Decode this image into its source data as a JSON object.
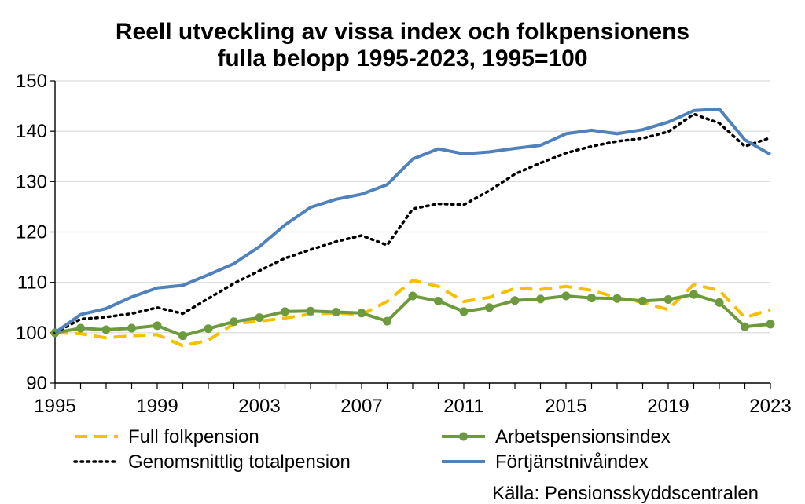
{
  "chart_data": {
    "type": "line",
    "title_line1": "Reell utveckling av vissa index och folkpensionens",
    "title_line2": "fulla belopp 1995-2023, 1995=100",
    "xlabel": "",
    "ylabel": "",
    "ylim": [
      90,
      150
    ],
    "yticks": [
      90,
      100,
      110,
      120,
      130,
      140,
      150
    ],
    "xlim": [
      1995,
      2023
    ],
    "xticks": [
      1995,
      1999,
      2003,
      2007,
      2011,
      2015,
      2019,
      2023
    ],
    "grid": "horizontal",
    "legend_position": "bottom",
    "x": [
      1995,
      1996,
      1997,
      1998,
      1999,
      2000,
      2001,
      2002,
      2003,
      2004,
      2005,
      2006,
      2007,
      2008,
      2009,
      2010,
      2011,
      2012,
      2013,
      2014,
      2015,
      2016,
      2017,
      2018,
      2019,
      2020,
      2021,
      2022,
      2023
    ],
    "series": [
      {
        "name": "Full folkpension",
        "color": "#F5C000",
        "style": "dashed",
        "values": [
          100,
          99.8,
          99.0,
          99.4,
          99.6,
          97.4,
          98.5,
          101.8,
          102.3,
          102.9,
          103.7,
          103.9,
          103.6,
          106.2,
          110.4,
          109.2,
          106.2,
          107.0,
          108.8,
          108.6,
          109.2,
          108.4,
          107.0,
          106.0,
          104.6,
          109.6,
          108.4,
          103.0,
          104.6
        ]
      },
      {
        "name": "Arbetspensionsindex",
        "color": "#6E9A3E",
        "style": "solid-markers",
        "values": [
          100,
          100.9,
          100.6,
          100.9,
          101.4,
          99.4,
          100.8,
          102.2,
          103.0,
          104.2,
          104.3,
          104.1,
          103.9,
          102.3,
          107.3,
          106.3,
          104.2,
          105.0,
          106.4,
          106.7,
          107.3,
          106.9,
          106.8,
          106.3,
          106.6,
          107.6,
          106.0,
          101.2,
          101.7
        ]
      },
      {
        "name": "Genomsnittlig totalpension",
        "color": "#000000",
        "style": "dotted",
        "values": [
          100,
          102.7,
          103.1,
          103.8,
          105.0,
          103.8,
          106.8,
          109.8,
          112.3,
          114.8,
          116.5,
          118.1,
          119.3,
          117.4,
          124.6,
          125.6,
          125.4,
          128.2,
          131.5,
          133.7,
          135.7,
          137.0,
          138.0,
          138.6,
          139.9,
          143.4,
          141.6,
          137.0,
          138.7
        ]
      },
      {
        "name": "Förtjänstnivåindex",
        "color": "#4F81BD",
        "style": "solid",
        "values": [
          100,
          103.6,
          104.8,
          107.1,
          108.9,
          109.4,
          111.5,
          113.7,
          117.1,
          121.4,
          124.9,
          126.5,
          127.5,
          129.4,
          134.5,
          136.5,
          135.5,
          135.9,
          136.6,
          137.2,
          139.5,
          140.2,
          139.5,
          140.3,
          141.8,
          144.1,
          144.4,
          138.3,
          135.4
        ]
      }
    ],
    "source": "Källa: Pensionsskyddscentralen"
  }
}
